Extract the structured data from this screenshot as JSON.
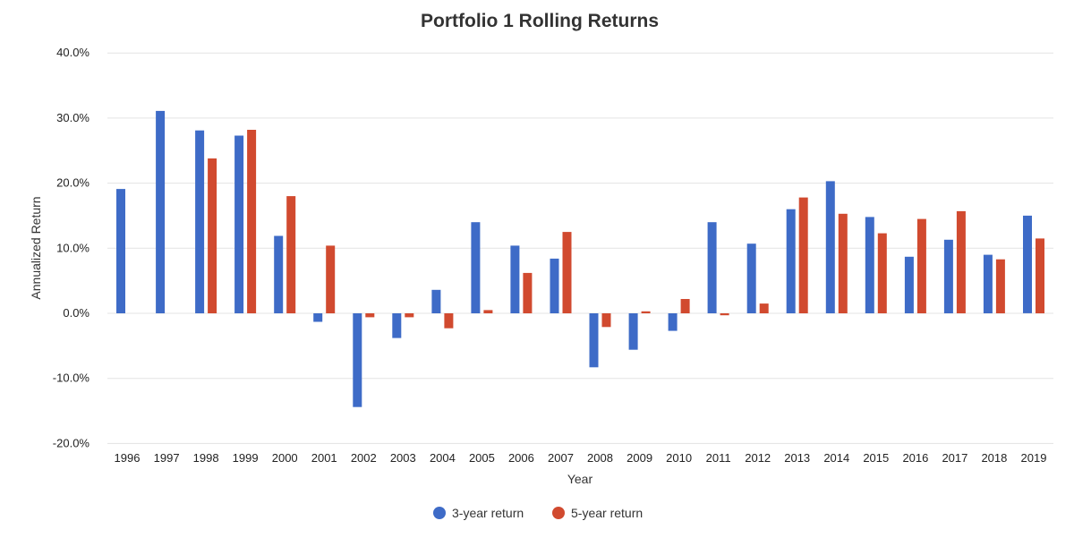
{
  "chart_data": {
    "type": "bar",
    "title": "Portfolio 1 Rolling Returns",
    "xlabel": "Year",
    "ylabel": "Annualized Return",
    "ylim": [
      -20,
      40
    ],
    "yticks": [
      "40.0%",
      "30.0%",
      "20.0%",
      "10.0%",
      "0.0%",
      "-10.0%",
      "-20.0%"
    ],
    "ytick_values": [
      40,
      30,
      20,
      10,
      0,
      -10,
      -20
    ],
    "grid": true,
    "legend_position": "bottom-center",
    "categories": [
      "1996",
      "1997",
      "1998",
      "1999",
      "2000",
      "2001",
      "2002",
      "2003",
      "2004",
      "2005",
      "2006",
      "2007",
      "2008",
      "2009",
      "2010",
      "2011",
      "2012",
      "2013",
      "2014",
      "2015",
      "2016",
      "2017",
      "2018",
      "2019"
    ],
    "series": [
      {
        "name": "3-year return",
        "color": "#3e6bc7",
        "values": [
          19.1,
          31.1,
          28.1,
          27.3,
          11.9,
          -1.3,
          -14.4,
          -3.8,
          3.6,
          14.0,
          10.4,
          8.4,
          -8.3,
          -5.6,
          -2.7,
          14.0,
          10.7,
          16.0,
          20.3,
          14.8,
          8.7,
          11.3,
          9.0,
          15.0
        ]
      },
      {
        "name": "5-year return",
        "color": "#d14a2f",
        "values": [
          null,
          null,
          23.8,
          28.2,
          18.0,
          10.4,
          -0.6,
          -0.6,
          -2.3,
          0.5,
          6.2,
          12.5,
          -2.1,
          0.3,
          2.2,
          -0.3,
          1.5,
          17.8,
          15.3,
          12.3,
          14.5,
          15.7,
          8.3,
          11.5
        ]
      }
    ]
  }
}
